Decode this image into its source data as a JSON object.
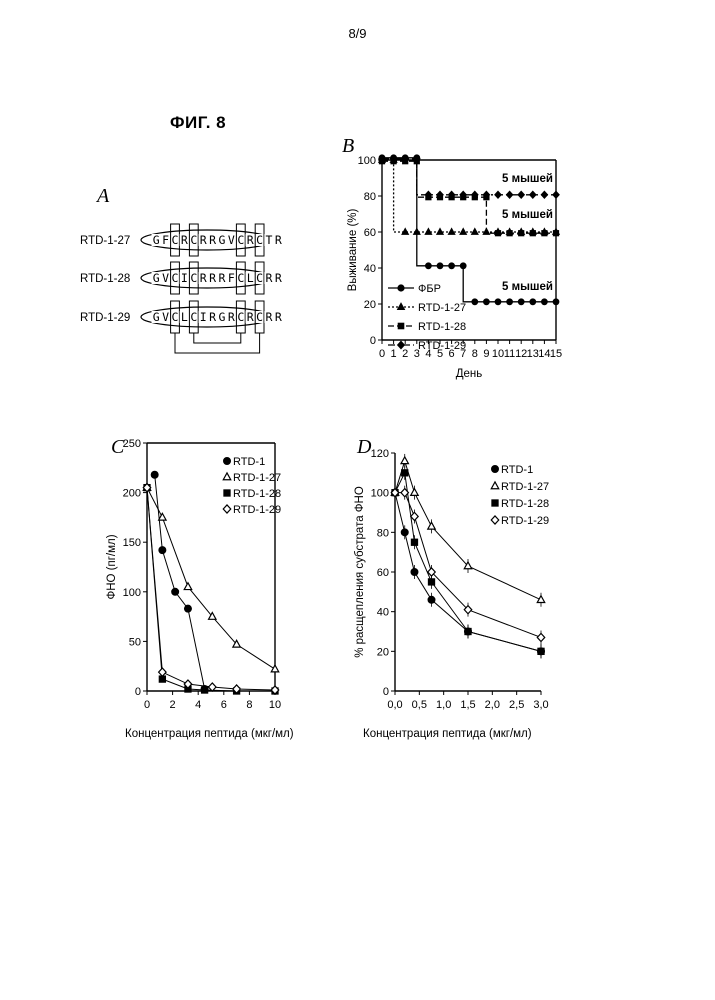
{
  "page": {
    "number": "8/9",
    "figure_title": "ФИГ. 8"
  },
  "panel_a": {
    "letter": "A",
    "peptides": [
      {
        "name": "RTD-1-27",
        "residues": [
          "G",
          "F",
          "C",
          "R",
          "C",
          "R",
          "R",
          "G",
          "V",
          "C",
          "R",
          "C",
          "T",
          "R"
        ]
      },
      {
        "name": "RTD-1-28",
        "residues": [
          "G",
          "V",
          "C",
          "I",
          "C",
          "R",
          "R",
          "R",
          "F",
          "C",
          "L",
          "C",
          "R",
          "R"
        ]
      },
      {
        "name": "RTD-1-29",
        "residues": [
          "G",
          "V",
          "C",
          "L",
          "C",
          "I",
          "R",
          "G",
          "R",
          "C",
          "R",
          "C",
          "R",
          "R"
        ]
      }
    ]
  },
  "chart_data": [
    {
      "panel": "B",
      "type": "line",
      "xlabel": "День",
      "ylabel": "Выживание (%)",
      "xlim": [
        0,
        15
      ],
      "ylim": [
        0,
        100
      ],
      "x_ticks": [
        0,
        1,
        2,
        3,
        4,
        5,
        6,
        7,
        8,
        9,
        10,
        11,
        12,
        13,
        14,
        15
      ],
      "y_ticks": [
        0,
        20,
        40,
        60,
        80,
        100
      ],
      "legend_position": "bottom-left",
      "annotations": [
        "5 мышей",
        "5 мышей",
        "5 мышей"
      ],
      "series": [
        {
          "name": "ФБР",
          "marker": "circle",
          "line": "solid",
          "x": [
            0,
            1,
            2,
            3,
            3,
            4,
            5,
            6,
            7,
            7,
            8,
            9,
            10,
            11,
            12,
            13,
            14,
            15
          ],
          "y": [
            100,
            100,
            100,
            100,
            40,
            40,
            40,
            40,
            40,
            20,
            20,
            20,
            20,
            20,
            20,
            20,
            20,
            20
          ]
        },
        {
          "name": "RTD-1-27",
          "marker": "triangle",
          "line": "dotted",
          "x": [
            0,
            1,
            1,
            2,
            3,
            4,
            5,
            6,
            7,
            8,
            9,
            10,
            11,
            12,
            13,
            14,
            15
          ],
          "y": [
            100,
            100,
            60,
            60,
            60,
            60,
            60,
            60,
            60,
            60,
            60,
            60,
            60,
            60,
            60,
            60,
            60
          ]
        },
        {
          "name": "RTD-1-28",
          "marker": "square",
          "line": "dashed",
          "x": [
            0,
            1,
            2,
            3,
            3,
            4,
            5,
            6,
            7,
            8,
            9,
            9,
            10,
            11,
            12,
            13,
            14,
            15
          ],
          "y": [
            100,
            100,
            100,
            100,
            80,
            80,
            80,
            80,
            80,
            80,
            80,
            60,
            60,
            60,
            60,
            60,
            60,
            60
          ]
        },
        {
          "name": "RTD-1-29",
          "marker": "diamond",
          "line": "dashdot",
          "x": [
            0,
            1,
            2,
            3,
            3,
            4,
            5,
            6,
            7,
            8,
            9,
            10,
            11,
            12,
            13,
            14,
            15
          ],
          "y": [
            100,
            100,
            100,
            100,
            80,
            80,
            80,
            80,
            80,
            80,
            80,
            80,
            80,
            80,
            80,
            80,
            80
          ]
        }
      ]
    },
    {
      "panel": "C",
      "type": "line",
      "xlabel": "Концентрация пептида  (мкг/мл)",
      "ylabel": "ФНО (пг/мл)",
      "xlim": [
        0,
        10
      ],
      "ylim": [
        0,
        250
      ],
      "x_ticks": [
        0,
        2,
        4,
        6,
        8,
        10
      ],
      "y_ticks": [
        0,
        50,
        100,
        150,
        200,
        250
      ],
      "legend_position": "top-right",
      "series": [
        {
          "name": "RTD-1",
          "marker": "filled-circle",
          "x": [
            0.6,
            1.2,
            2.2,
            3.2,
            4.5
          ],
          "y": [
            218,
            142,
            100,
            83,
            2
          ]
        },
        {
          "name": "RTD-1-27",
          "marker": "open-triangle",
          "x": [
            0,
            1.2,
            3.2,
            5.1,
            7.0,
            10.0
          ],
          "y": [
            205,
            175,
            105,
            75,
            47,
            22
          ]
        },
        {
          "name": "RTD-1-28",
          "marker": "filled-square",
          "x": [
            0,
            1.2,
            3.2,
            4.5,
            7.0,
            10.0
          ],
          "y": [
            205,
            12,
            2,
            1,
            0,
            0
          ]
        },
        {
          "name": "RTD-1-29",
          "marker": "open-diamond",
          "x": [
            0,
            1.2,
            3.2,
            5.1,
            7.0,
            10.0
          ],
          "y": [
            205,
            19,
            7,
            4,
            2,
            1
          ]
        }
      ]
    },
    {
      "panel": "D",
      "type": "line",
      "xlabel": "Концентрация пептида  (мкг/мл)",
      "ylabel": "% расщепления субстрата ФНО",
      "xlim": [
        0,
        3
      ],
      "ylim": [
        0,
        120
      ],
      "x_ticks": [
        0,
        0.5,
        1.0,
        1.5,
        2.0,
        2.5,
        3.0
      ],
      "x_tick_labels": [
        "0,0",
        "0,5",
        "1,0",
        "1,5",
        "2,0",
        "2,5",
        "3,0"
      ],
      "y_ticks": [
        0,
        20,
        40,
        60,
        80,
        100,
        120
      ],
      "legend_position": "top-right",
      "series": [
        {
          "name": "RTD-1",
          "marker": "filled-circle",
          "x": [
            0,
            0.2,
            0.4,
            0.75,
            1.5,
            3.0
          ],
          "y": [
            100,
            80,
            60,
            46,
            30,
            20
          ]
        },
        {
          "name": "RTD-1-27",
          "marker": "open-triangle",
          "x": [
            0,
            0.2,
            0.4,
            0.75,
            1.5,
            3.0
          ],
          "y": [
            100,
            116,
            100,
            83,
            63,
            46
          ]
        },
        {
          "name": "RTD-1-28",
          "marker": "filled-square",
          "x": [
            0,
            0.2,
            0.4,
            0.75,
            1.5,
            3.0
          ],
          "y": [
            100,
            110,
            75,
            55,
            30,
            20
          ]
        },
        {
          "name": "RTD-1-29",
          "marker": "open-diamond",
          "x": [
            0,
            0.2,
            0.4,
            0.75,
            1.5,
            3.0
          ],
          "y": [
            100,
            100,
            88,
            60,
            41,
            27
          ]
        }
      ]
    }
  ]
}
